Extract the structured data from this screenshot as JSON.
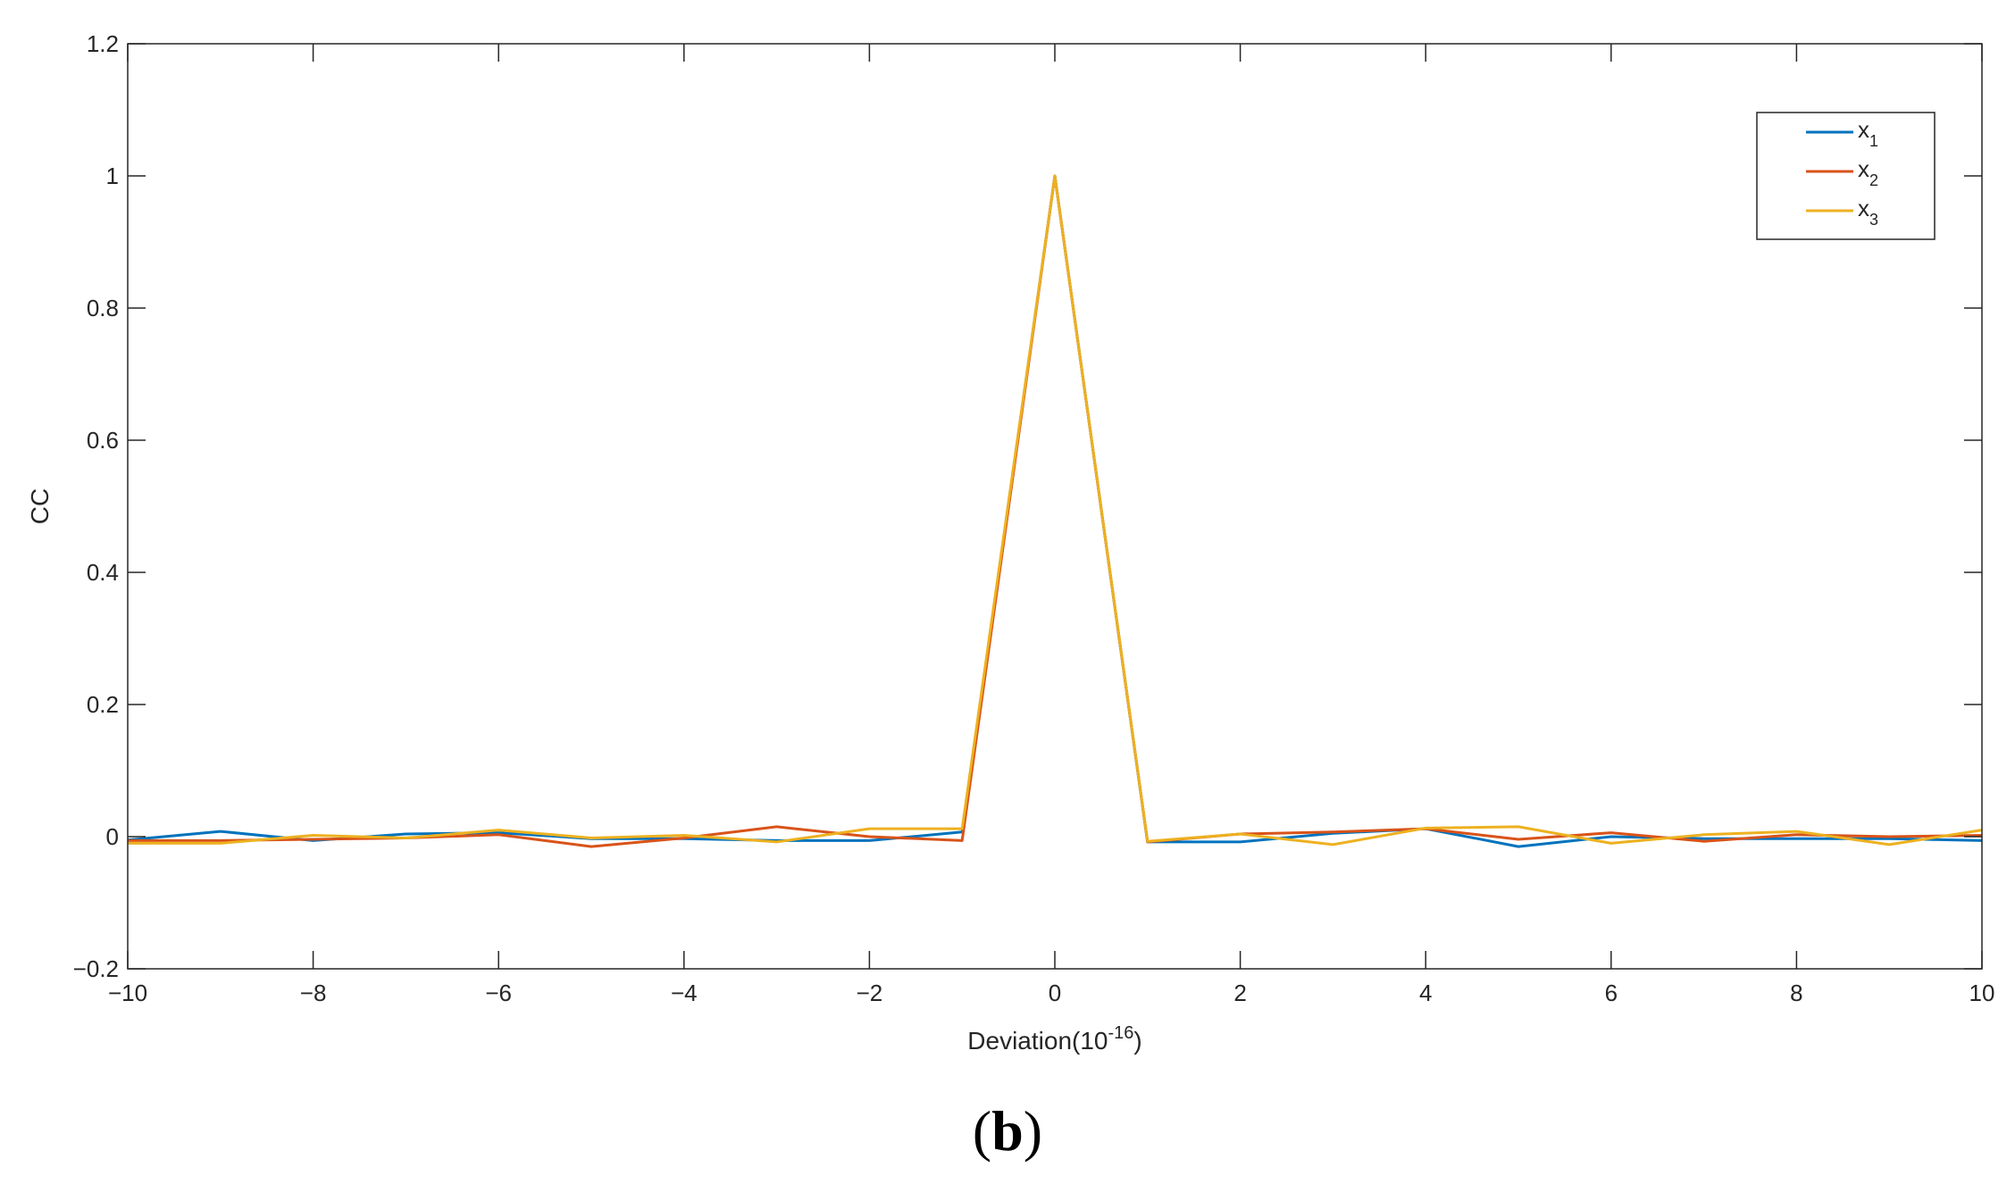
{
  "chart_data": {
    "type": "line",
    "title": "",
    "xlabel": "Deviation(10",
    "xlabel_sup": "-16",
    "xlabel_tail": ")",
    "ylabel": "CC",
    "xlim": [
      -10,
      10
    ],
    "ylim": [
      -0.2,
      1.2
    ],
    "x_ticks": [
      -10,
      -8,
      -6,
      -4,
      -2,
      0,
      2,
      4,
      6,
      8,
      10
    ],
    "x_tick_labels": [
      "−10",
      "−8",
      "−6",
      "−4",
      "−2",
      "0",
      "2",
      "4",
      "6",
      "8",
      "10"
    ],
    "y_ticks": [
      -0.2,
      0,
      0.2,
      0.4,
      0.6,
      0.8,
      1,
      1.2
    ],
    "y_tick_labels": [
      "−0.2",
      "0",
      "0.2",
      "0.4",
      "0.6",
      "0.8",
      "1",
      "1.2"
    ],
    "grid": false,
    "legend_position": "top-right",
    "x": [
      -10,
      -9,
      -8,
      -7,
      -6,
      -5,
      -4,
      -3,
      -2,
      -1,
      0,
      1,
      2,
      3,
      4,
      5,
      6,
      7,
      8,
      9,
      10
    ],
    "series": [
      {
        "name": "x",
        "subscript": "1",
        "color": "#0072BD",
        "values": [
          -0.005,
          0.008,
          -0.006,
          0.004,
          0.006,
          -0.003,
          -0.003,
          -0.006,
          -0.006,
          0.007,
          1.0,
          -0.008,
          -0.008,
          0.005,
          0.012,
          -0.015,
          0.0,
          -0.003,
          -0.003,
          -0.003,
          -0.006
        ]
      },
      {
        "name": "x",
        "subscript": "2",
        "color": "#D95319",
        "values": [
          -0.006,
          -0.006,
          -0.004,
          -0.002,
          0.003,
          -0.015,
          -0.002,
          0.015,
          0.0,
          -0.006,
          1.0,
          -0.008,
          0.004,
          0.007,
          0.012,
          -0.004,
          0.006,
          -0.007,
          0.003,
          0.0,
          0.002
        ]
      },
      {
        "name": "x",
        "subscript": "3",
        "color": "#EDB120",
        "values": [
          -0.01,
          -0.01,
          0.002,
          -0.002,
          0.01,
          -0.002,
          0.002,
          -0.008,
          0.012,
          0.012,
          1.0,
          -0.007,
          0.004,
          -0.012,
          0.013,
          0.015,
          -0.01,
          0.003,
          0.008,
          -0.012,
          0.01
        ]
      }
    ]
  },
  "panel_label": {
    "open": "(",
    "letter": "b",
    "close": ")"
  }
}
